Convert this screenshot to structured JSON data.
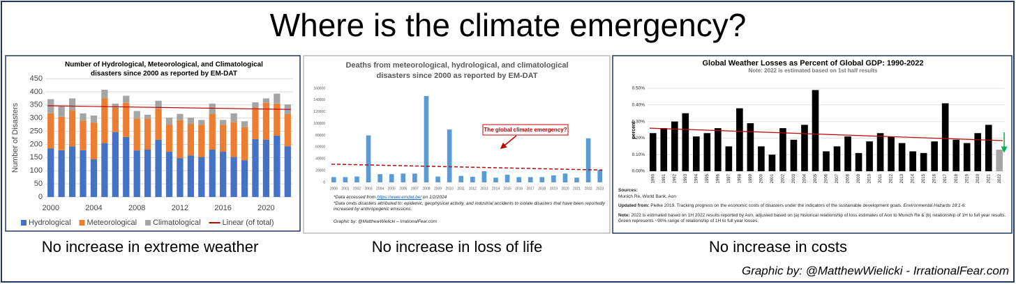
{
  "title": "Where is the climate emergency?",
  "captions": [
    "No increase in extreme weather",
    "No increase in loss of life",
    "No increase in costs"
  ],
  "footer": "Graphic by: @MatthewWielicki - IrrationalFear.com",
  "chart_data": [
    {
      "type": "bar",
      "stacked": true,
      "title": [
        "Number of Hydrological, Meteorological, and Climatological",
        "disasters since 2000 as reported by EM-DAT"
      ],
      "y_label": "Number of Disasters",
      "x": [
        2000,
        2001,
        2002,
        2003,
        2004,
        2005,
        2006,
        2007,
        2008,
        2009,
        2010,
        2011,
        2012,
        2013,
        2014,
        2015,
        2016,
        2017,
        2018,
        2019,
        2020,
        2021,
        2022
      ],
      "xlim": [
        1999.5,
        2022.5
      ],
      "xticks": [
        2000,
        2004,
        2008,
        2012,
        2016,
        2020
      ],
      "ylim": [
        0,
        450
      ],
      "yticks": [
        0,
        50,
        100,
        150,
        200,
        250,
        300,
        350,
        400,
        450
      ],
      "grid": true,
      "series": [
        {
          "name": "Hydrological",
          "color": "#4472c4",
          "values": [
            185,
            178,
            192,
            178,
            143,
            205,
            247,
            228,
            177,
            180,
            217,
            172,
            148,
            158,
            152,
            180,
            172,
            152,
            140,
            220,
            218,
            233,
            193
          ]
        },
        {
          "name": "Meteorological",
          "color": "#ed7d31",
          "values": [
            133,
            127,
            138,
            112,
            139,
            170,
            93,
            130,
            121,
            118,
            118,
            103,
            144,
            120,
            123,
            135,
            103,
            133,
            125,
            120,
            140,
            122,
            122
          ]
        },
        {
          "name": "Climatological",
          "color": "#a5a5a5",
          "values": [
            54,
            40,
            45,
            28,
            28,
            33,
            15,
            27,
            29,
            15,
            31,
            27,
            24,
            24,
            18,
            40,
            18,
            33,
            23,
            20,
            17,
            38,
            37
          ]
        }
      ],
      "trend": {
        "name": "Linear (of total)",
        "color": "#c00000",
        "values": [
          347,
          333
        ]
      },
      "legend": "bottom"
    },
    {
      "type": "bar",
      "title": [
        "Deaths from meteorological, hydrological, and climatological",
        "disasters since 2000 as reported by EM-DAT"
      ],
      "categories": [
        "2000",
        "2001",
        "2002",
        "2003",
        "2004",
        "2005",
        "2006",
        "2007",
        "2008",
        "2009",
        "2010",
        "2011",
        "2012",
        "2013",
        "2014",
        "2015",
        "2016",
        "2017",
        "2018",
        "2019",
        "2020",
        "2021",
        "2022",
        "2023"
      ],
      "values": [
        9000,
        9000,
        10000,
        80000,
        14000,
        14000,
        15000,
        15000,
        147000,
        10000,
        90000,
        11000,
        9500,
        19000,
        8000,
        13000,
        9000,
        9000,
        9000,
        12000,
        15000,
        8000,
        75000,
        21000
      ],
      "color": "#5b9bd5",
      "ylim": [
        0,
        160000
      ],
      "yticks": [
        0,
        20000,
        40000,
        60000,
        80000,
        100000,
        120000,
        140000,
        160000
      ],
      "grid": false,
      "trend": {
        "color": "#c00000",
        "values": [
          31000,
          21000
        ]
      },
      "annotation": "The global climate emergency?",
      "note1_prefix": "*Data accessed from",
      "link": "https://www.emdat.be/",
      "note1_suffix": "on 1/2/2024",
      "note2": "*Data omits disasters attributed to: epidemic, geophysical activity, and industrial accidents to isolate disasters that have been reportedly increased by anthropogenic emissions.",
      "credit": "Graphic by: @MatthewWielicki – IrrationalFear.com"
    },
    {
      "type": "bar",
      "title": [
        "Global Weather Losses as Percent of Global GDP: 1990-2022"
      ],
      "subtitle": "Note: 2022 is estimated based on 1st half results",
      "y_label": "percent",
      "categories": [
        "1990",
        "1991",
        "1992",
        "1993",
        "1994",
        "1995",
        "1996",
        "1997",
        "1998",
        "1999",
        "2000",
        "2001",
        "2002",
        "2003",
        "2004",
        "2005",
        "2006",
        "2007",
        "2008",
        "2009",
        "2010",
        "2011",
        "2012",
        "2013",
        "2014",
        "2015",
        "2016",
        "2017",
        "2018",
        "2019",
        "2020",
        "2021",
        "2022"
      ],
      "values": [
        0.23,
        0.26,
        0.3,
        0.35,
        0.21,
        0.23,
        0.26,
        0.15,
        0.38,
        0.29,
        0.15,
        0.1,
        0.26,
        0.19,
        0.28,
        0.49,
        0.12,
        0.15,
        0.21,
        0.11,
        0.18,
        0.23,
        0.21,
        0.17,
        0.12,
        0.11,
        0.18,
        0.41,
        0.19,
        0.17,
        0.23,
        0.28,
        0.13
      ],
      "colors": [
        "#000000",
        "#000000",
        "#000000",
        "#000000",
        "#000000",
        "#000000",
        "#000000",
        "#000000",
        "#000000",
        "#000000",
        "#000000",
        "#000000",
        "#000000",
        "#000000",
        "#000000",
        "#000000",
        "#000000",
        "#000000",
        "#000000",
        "#000000",
        "#000000",
        "#000000",
        "#000000",
        "#000000",
        "#000000",
        "#000000",
        "#000000",
        "#000000",
        "#000000",
        "#000000",
        "#000000",
        "#000000",
        "#a6a6a6"
      ],
      "error_range": {
        "color": "#00b050",
        "values": [
          0.13,
          0.235
        ]
      },
      "ylim": [
        0,
        0.5
      ],
      "yticks": [
        {
          "value": 0,
          "label": "0.00%"
        },
        {
          "value": 0.1,
          "label": "0.10%"
        },
        {
          "value": 0.2,
          "label": "0.20%"
        },
        {
          "value": 0.3,
          "label": "0.30%"
        },
        {
          "value": 0.4,
          "label": "0.40%"
        },
        {
          "value": 0.5,
          "label": "0.50%"
        }
      ],
      "grid": true,
      "trend": {
        "color": "#c00000",
        "values": [
          0.26,
          0.185
        ]
      },
      "sources_label": "Sources:",
      "sources": "Munich Re, World Bank, Aon",
      "updated_label": "Updated from:",
      "updated": "Pielke 2019. Tracking progress on the economic costs of disasters under the indicators of the sustainable development goals.",
      "journal": "Environmental Hazards 18:1-6.",
      "note_label": "Note:",
      "note": "2022 is estimated based on 1H 2022 results reported by Aon, adjusted based on (a) historical relationship of loss estimates of Aon to Munich Re & (b) relationship of 1H to full year results. Green represents ~90% range of relationship of 1H to full year losses."
    }
  ]
}
